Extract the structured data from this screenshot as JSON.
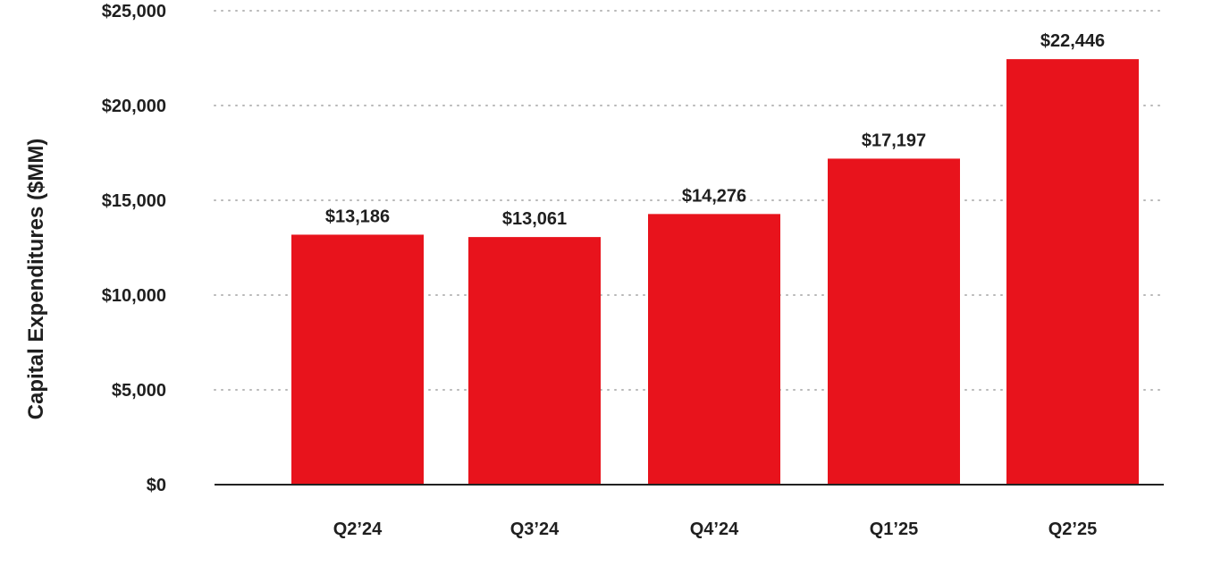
{
  "chart_data": {
    "type": "bar",
    "categories": [
      "Q2’24",
      "Q3’24",
      "Q4’24",
      "Q1’25",
      "Q2’25"
    ],
    "values": [
      13186,
      13061,
      14276,
      17197,
      22446
    ],
    "value_labels": [
      "$13,186",
      "$13,061",
      "$14,276",
      "$17,197",
      "$22,446"
    ],
    "title": "",
    "xlabel": "",
    "ylabel": "Capital Expenditures ($MM)",
    "ylim": [
      0,
      25000
    ],
    "y_ticks": [
      {
        "value": 0,
        "label": "$0"
      },
      {
        "value": 5000,
        "label": "$5,000"
      },
      {
        "value": 10000,
        "label": "$10,000"
      },
      {
        "value": 15000,
        "label": "$15,000"
      },
      {
        "value": 20000,
        "label": "$20,000"
      },
      {
        "value": 25000,
        "label": "$25,000"
      }
    ],
    "grid": true,
    "grid_style": "dotted",
    "bar_color": "#E8131C"
  }
}
